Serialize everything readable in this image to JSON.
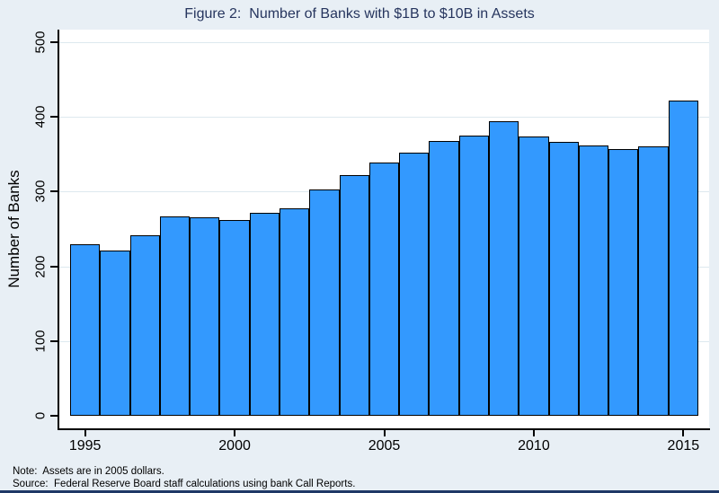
{
  "chart_data": {
    "type": "bar",
    "title": "Figure 2:  Number of Banks with $1B to $10B in Assets",
    "xlabel": "",
    "ylabel": "Number of Banks",
    "x": [
      1995,
      1996,
      1997,
      1998,
      1999,
      2000,
      2001,
      2002,
      2003,
      2004,
      2005,
      2006,
      2007,
      2008,
      2009,
      2010,
      2011,
      2012,
      2013,
      2014,
      2015
    ],
    "values": [
      229,
      221,
      241,
      267,
      266,
      262,
      271,
      278,
      303,
      322,
      339,
      352,
      368,
      375,
      394,
      374,
      366,
      362,
      357,
      360,
      422
    ],
    "ylim": [
      0,
      500
    ],
    "yticks": [
      0,
      100,
      200,
      300,
      400,
      500
    ],
    "xticks": [
      1995,
      2000,
      2005,
      2010,
      2015
    ],
    "grid": true,
    "legend": "none",
    "bar_fill_color": "#3399fe",
    "bar_border_color": "#000000",
    "plot_background_color": "#ffffff",
    "outer_background_color": "#e8eff5",
    "title_color": "#26355e",
    "gridline_color": "#dde9ef",
    "bottom_strip_color": "#1e3866"
  },
  "notes": {
    "note": "Note:  Assets are in 2005 dollars.",
    "source": "Source:  Federal Reserve Board staff calculations using bank Call Reports."
  }
}
